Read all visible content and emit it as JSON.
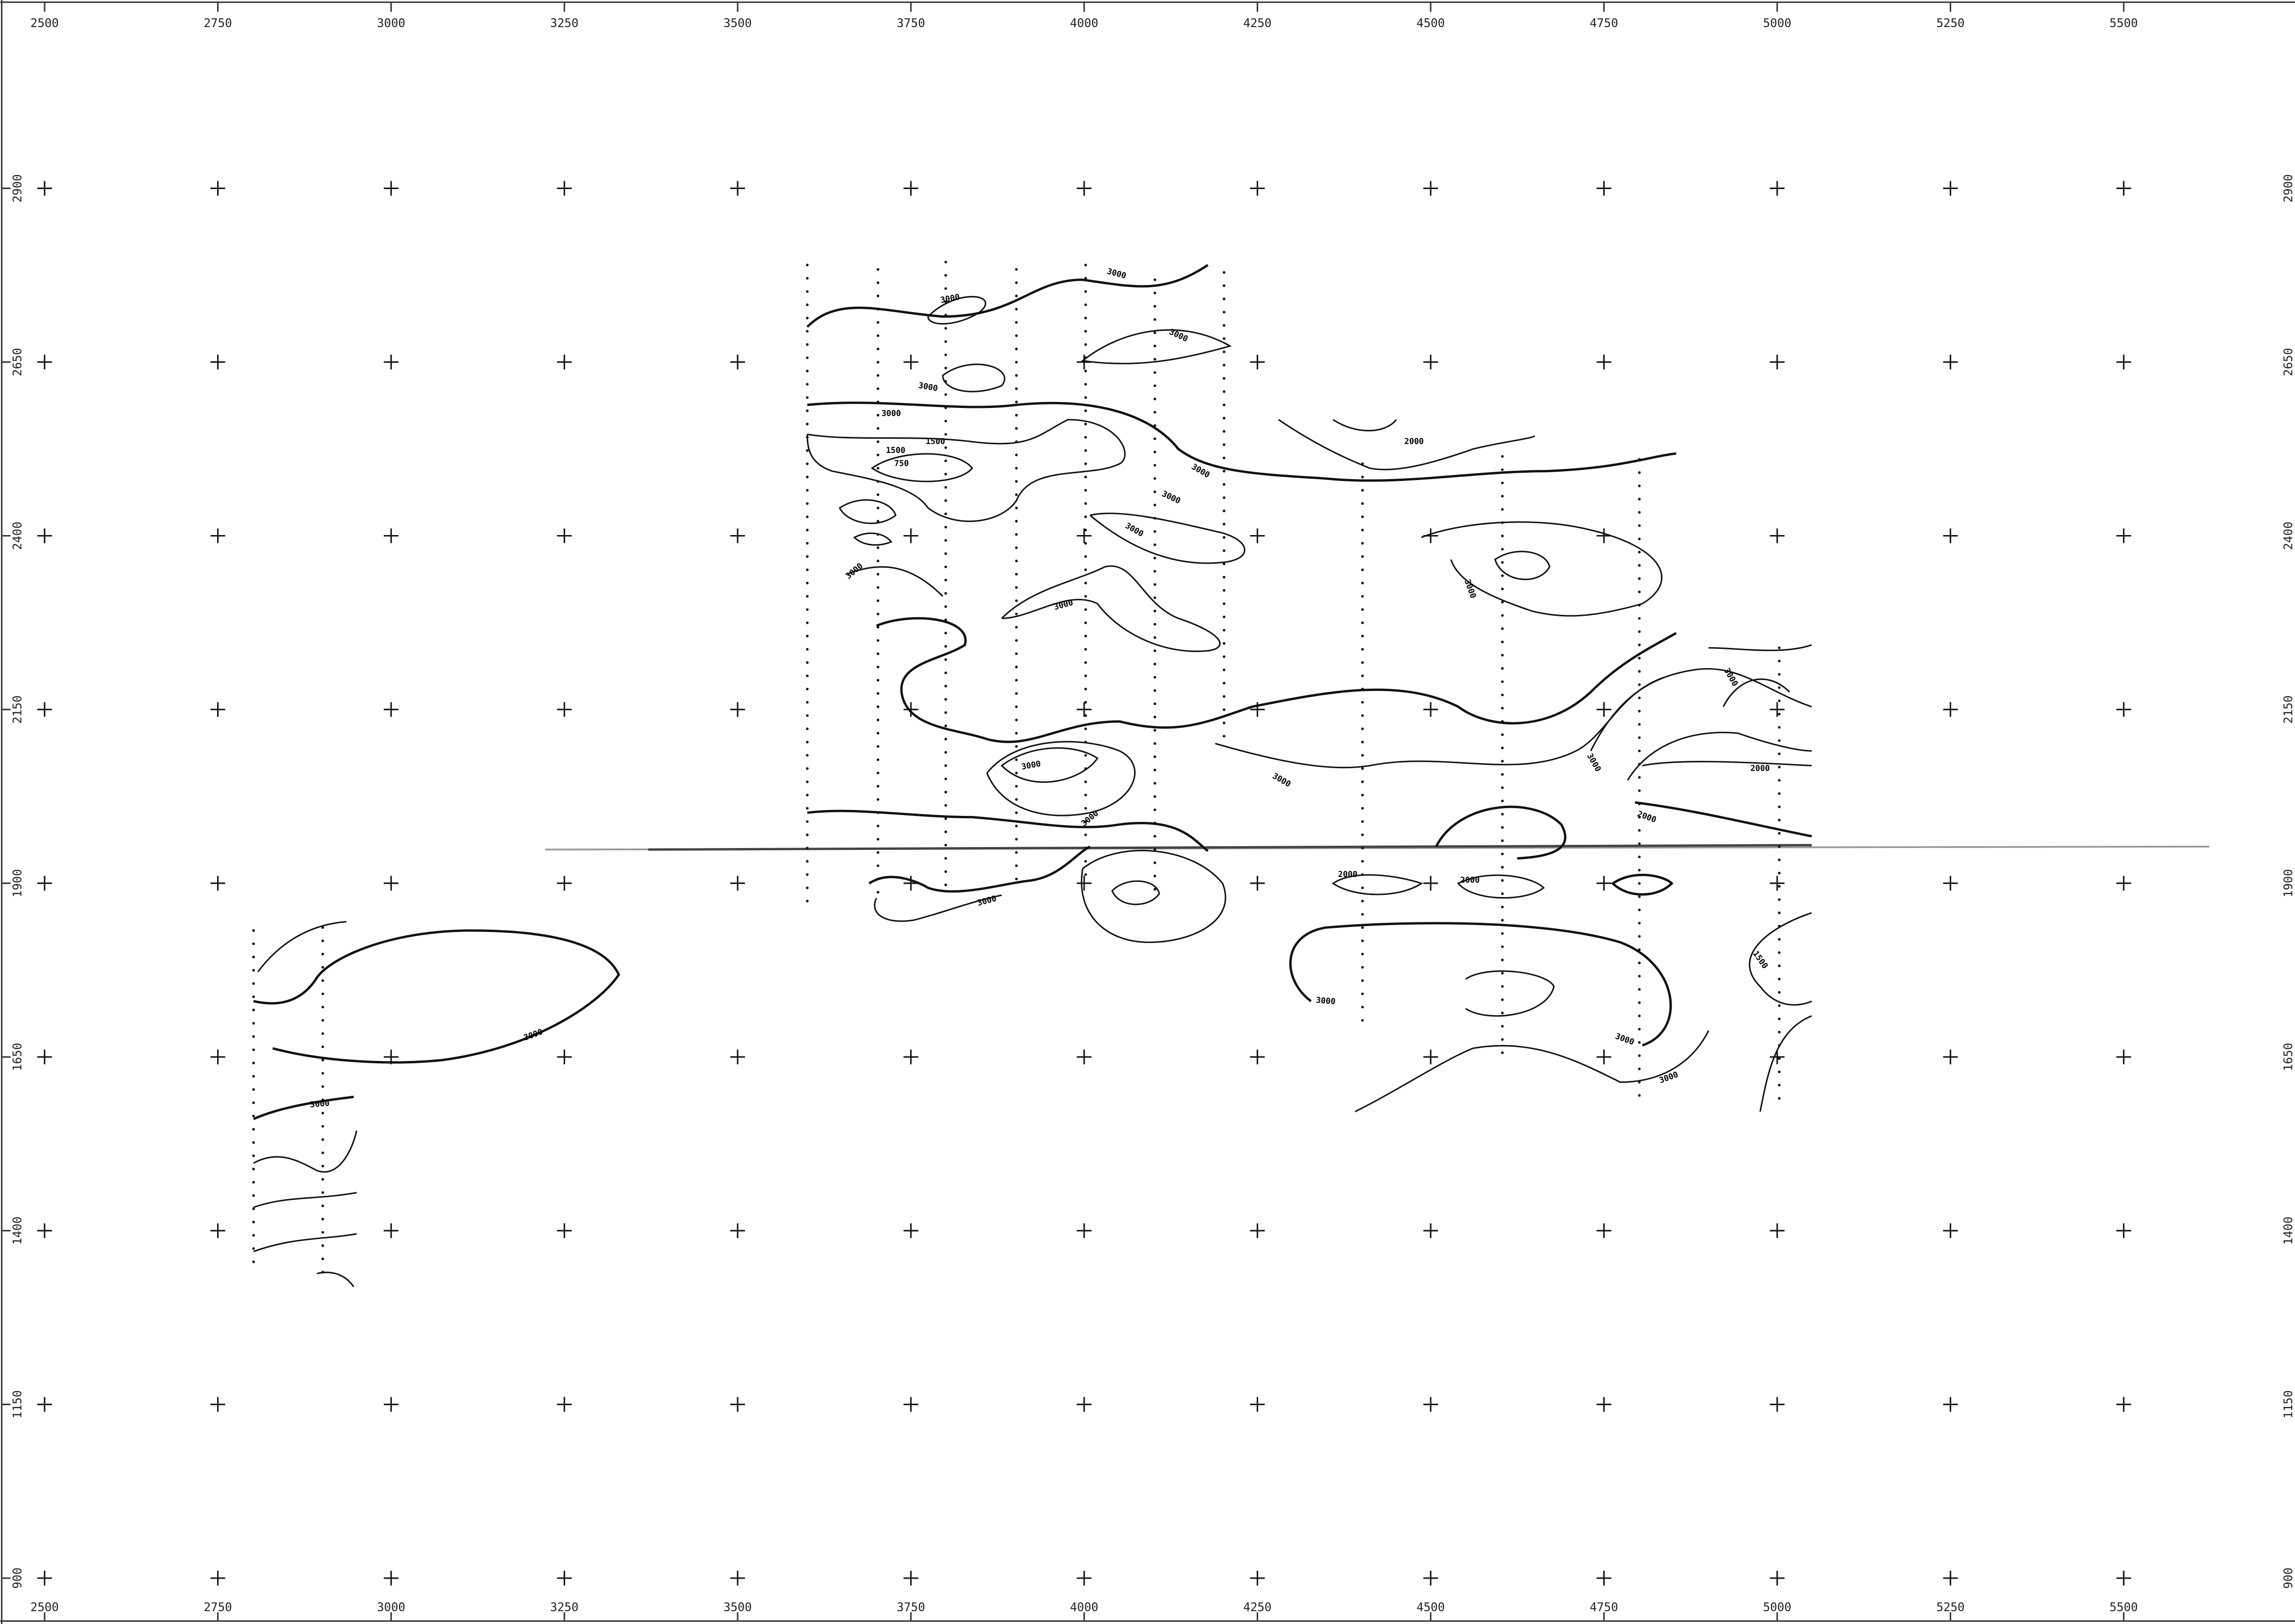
{
  "chart_data": {
    "type": "contour",
    "xlim": [
      2436,
      5768
    ],
    "ylim": [
      834,
      3171
    ],
    "xticks": [
      2500,
      2750,
      3000,
      3250,
      3500,
      3750,
      4000,
      4250,
      4500,
      4750,
      5000,
      5250,
      5500
    ],
    "yticks": [
      900,
      1150,
      1400,
      1650,
      1900,
      2150,
      2400,
      2650,
      2900
    ],
    "grid": "crosses",
    "color": "#111111",
    "contour_labels": [
      3000,
      3000,
      3000,
      3000,
      3000,
      1500,
      1500,
      750,
      3000,
      3000,
      3000,
      3000,
      3000,
      3000,
      3000,
      3000,
      2000,
      2000,
      3000,
      3000,
      3000,
      2000,
      3000,
      2000,
      2000,
      1500,
      3000,
      3000,
      3000,
      3000,
      3000
    ]
  }
}
